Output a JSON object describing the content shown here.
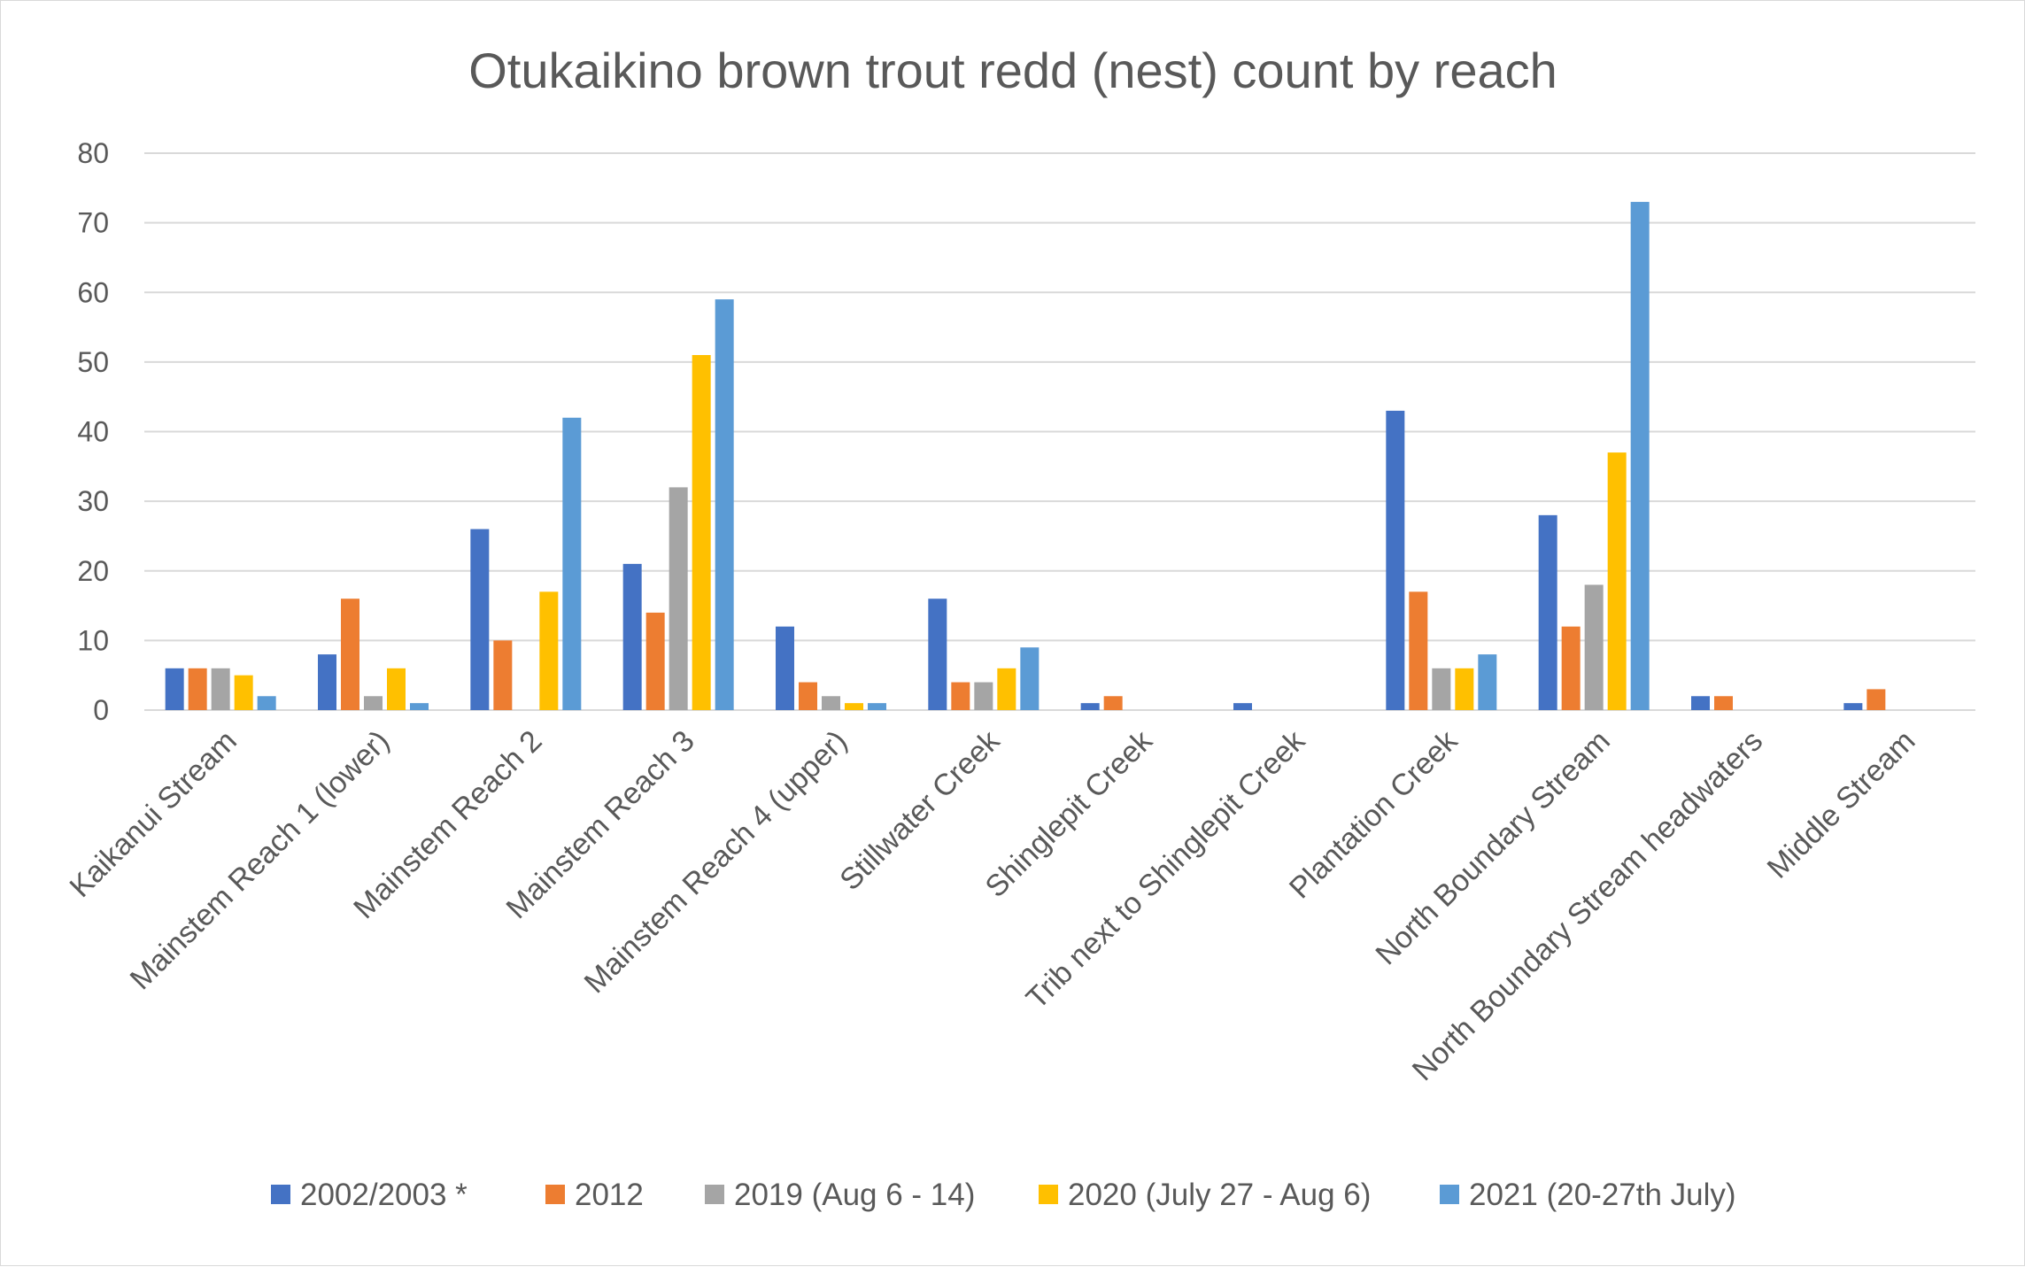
{
  "chart_data": {
    "type": "bar",
    "title": "Otukaikino brown trout redd (nest) count by reach",
    "xlabel": "",
    "ylabel": "",
    "ylim": [
      0,
      80
    ],
    "yticks": [
      0,
      10,
      20,
      30,
      40,
      50,
      60,
      70,
      80
    ],
    "grid": true,
    "legend_position": "bottom",
    "categories": [
      "Kaikanui Stream",
      "Mainstem Reach 1 (lower)",
      "Mainstem Reach 2",
      "Mainstem Reach 3",
      "Mainstem Reach 4 (upper)",
      "Stillwater Creek",
      "Shinglepit Creek",
      "Trib next to Shinglepit Creek",
      "Plantation Creek",
      "North Boundary Stream",
      "North Boundary Stream headwaters",
      "Middle Stream"
    ],
    "series": [
      {
        "name": "2002/2003 *",
        "color": "#4472c4",
        "values": [
          6,
          8,
          26,
          21,
          12,
          16,
          1,
          1,
          43,
          28,
          2,
          1
        ]
      },
      {
        "name": "2012",
        "color": "#ed7d31",
        "values": [
          6,
          16,
          10,
          14,
          4,
          4,
          2,
          0,
          17,
          12,
          2,
          3
        ]
      },
      {
        "name": "2019 (Aug 6 - 14)",
        "color": "#a5a5a5",
        "values": [
          6,
          2,
          0,
          32,
          2,
          4,
          0,
          0,
          6,
          18,
          0,
          0
        ]
      },
      {
        "name": "2020 (July 27 - Aug 6)",
        "color": "#ffc000",
        "values": [
          5,
          6,
          17,
          51,
          1,
          6,
          0,
          0,
          6,
          37,
          0,
          0
        ]
      },
      {
        "name": "2021  (20-27th July)",
        "color": "#5b9bd5",
        "values": [
          2,
          1,
          42,
          59,
          1,
          9,
          0,
          0,
          8,
          73,
          0,
          0
        ]
      }
    ]
  }
}
